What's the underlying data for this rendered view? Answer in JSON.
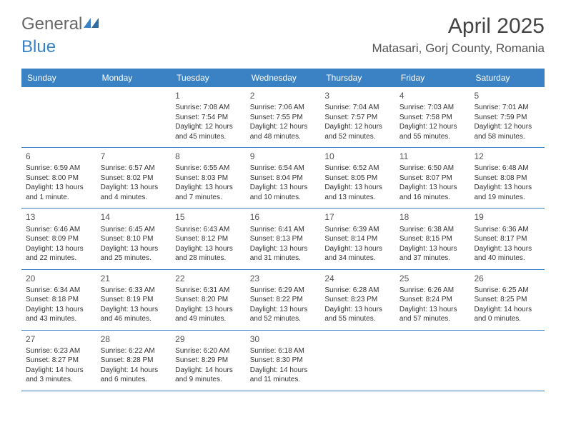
{
  "logo": {
    "general": "General",
    "blue": "Blue"
  },
  "title": "April 2025",
  "location": "Matasari, Gorj County, Romania",
  "header_bg": "#3b82c4",
  "weekdays": [
    "Sunday",
    "Monday",
    "Tuesday",
    "Wednesday",
    "Thursday",
    "Friday",
    "Saturday"
  ],
  "weeks": [
    [
      null,
      null,
      {
        "n": "1",
        "sr": "7:08 AM",
        "ss": "7:54 PM",
        "dl": "12 hours and 45 minutes."
      },
      {
        "n": "2",
        "sr": "7:06 AM",
        "ss": "7:55 PM",
        "dl": "12 hours and 48 minutes."
      },
      {
        "n": "3",
        "sr": "7:04 AM",
        "ss": "7:57 PM",
        "dl": "12 hours and 52 minutes."
      },
      {
        "n": "4",
        "sr": "7:03 AM",
        "ss": "7:58 PM",
        "dl": "12 hours and 55 minutes."
      },
      {
        "n": "5",
        "sr": "7:01 AM",
        "ss": "7:59 PM",
        "dl": "12 hours and 58 minutes."
      }
    ],
    [
      {
        "n": "6",
        "sr": "6:59 AM",
        "ss": "8:00 PM",
        "dl": "13 hours and 1 minute."
      },
      {
        "n": "7",
        "sr": "6:57 AM",
        "ss": "8:02 PM",
        "dl": "13 hours and 4 minutes."
      },
      {
        "n": "8",
        "sr": "6:55 AM",
        "ss": "8:03 PM",
        "dl": "13 hours and 7 minutes."
      },
      {
        "n": "9",
        "sr": "6:54 AM",
        "ss": "8:04 PM",
        "dl": "13 hours and 10 minutes."
      },
      {
        "n": "10",
        "sr": "6:52 AM",
        "ss": "8:05 PM",
        "dl": "13 hours and 13 minutes."
      },
      {
        "n": "11",
        "sr": "6:50 AM",
        "ss": "8:07 PM",
        "dl": "13 hours and 16 minutes."
      },
      {
        "n": "12",
        "sr": "6:48 AM",
        "ss": "8:08 PM",
        "dl": "13 hours and 19 minutes."
      }
    ],
    [
      {
        "n": "13",
        "sr": "6:46 AM",
        "ss": "8:09 PM",
        "dl": "13 hours and 22 minutes."
      },
      {
        "n": "14",
        "sr": "6:45 AM",
        "ss": "8:10 PM",
        "dl": "13 hours and 25 minutes."
      },
      {
        "n": "15",
        "sr": "6:43 AM",
        "ss": "8:12 PM",
        "dl": "13 hours and 28 minutes."
      },
      {
        "n": "16",
        "sr": "6:41 AM",
        "ss": "8:13 PM",
        "dl": "13 hours and 31 minutes."
      },
      {
        "n": "17",
        "sr": "6:39 AM",
        "ss": "8:14 PM",
        "dl": "13 hours and 34 minutes."
      },
      {
        "n": "18",
        "sr": "6:38 AM",
        "ss": "8:15 PM",
        "dl": "13 hours and 37 minutes."
      },
      {
        "n": "19",
        "sr": "6:36 AM",
        "ss": "8:17 PM",
        "dl": "13 hours and 40 minutes."
      }
    ],
    [
      {
        "n": "20",
        "sr": "6:34 AM",
        "ss": "8:18 PM",
        "dl": "13 hours and 43 minutes."
      },
      {
        "n": "21",
        "sr": "6:33 AM",
        "ss": "8:19 PM",
        "dl": "13 hours and 46 minutes."
      },
      {
        "n": "22",
        "sr": "6:31 AM",
        "ss": "8:20 PM",
        "dl": "13 hours and 49 minutes."
      },
      {
        "n": "23",
        "sr": "6:29 AM",
        "ss": "8:22 PM",
        "dl": "13 hours and 52 minutes."
      },
      {
        "n": "24",
        "sr": "6:28 AM",
        "ss": "8:23 PM",
        "dl": "13 hours and 55 minutes."
      },
      {
        "n": "25",
        "sr": "6:26 AM",
        "ss": "8:24 PM",
        "dl": "13 hours and 57 minutes."
      },
      {
        "n": "26",
        "sr": "6:25 AM",
        "ss": "8:25 PM",
        "dl": "14 hours and 0 minutes."
      }
    ],
    [
      {
        "n": "27",
        "sr": "6:23 AM",
        "ss": "8:27 PM",
        "dl": "14 hours and 3 minutes."
      },
      {
        "n": "28",
        "sr": "6:22 AM",
        "ss": "8:28 PM",
        "dl": "14 hours and 6 minutes."
      },
      {
        "n": "29",
        "sr": "6:20 AM",
        "ss": "8:29 PM",
        "dl": "14 hours and 9 minutes."
      },
      {
        "n": "30",
        "sr": "6:18 AM",
        "ss": "8:30 PM",
        "dl": "14 hours and 11 minutes."
      },
      null,
      null,
      null
    ]
  ],
  "labels": {
    "sunrise": "Sunrise:",
    "sunset": "Sunset:",
    "daylight": "Daylight:"
  }
}
